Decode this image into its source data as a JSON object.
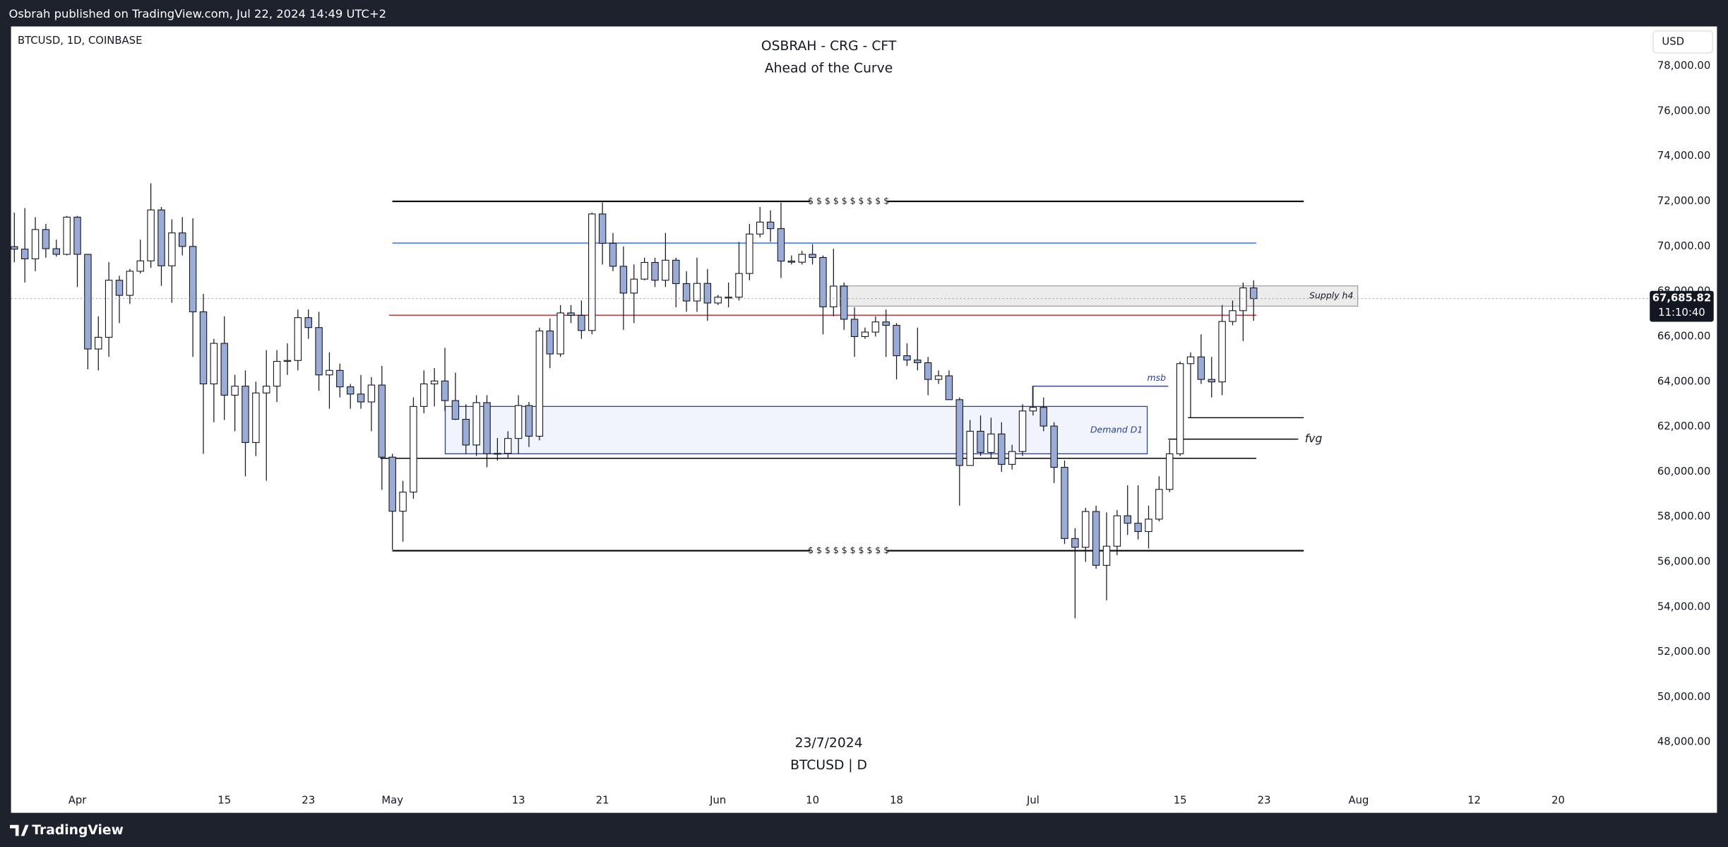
{
  "header": {
    "publisher": "Osbrah published on TradingView.com, Jul 22, 2024 14:49 UTC+2"
  },
  "footer": {
    "brand": "TradingView"
  },
  "chart_data": {
    "type": "candlestick",
    "title": "OSBRAH - CRG - CFT",
    "subtitle": "Ahead of the Curve",
    "symbol": "BTCUSD, 1D, COINBASE",
    "currency": "USD",
    "watermark_date": "23/7/2024",
    "watermark_symbol": "BTCUSD | D",
    "up_color": "#ffffff",
    "down_color": "#9aabd6",
    "wick_color": "#131722",
    "grid": false,
    "ylim": [
      44870,
      79760
    ],
    "yticks": [
      {
        "value": 48000,
        "label": "48,000.00"
      },
      {
        "value": 50000,
        "label": "50,000.00"
      },
      {
        "value": 52000,
        "label": "52,000.00"
      },
      {
        "value": 54000,
        "label": "54,000.00"
      },
      {
        "value": 56000,
        "label": "56,000.00"
      },
      {
        "value": 58000,
        "label": "58,000.00"
      },
      {
        "value": 60000,
        "label": "60,000.00"
      },
      {
        "value": 62000,
        "label": "62,000.00"
      },
      {
        "value": 64000,
        "label": "64,000.00"
      },
      {
        "value": 66000,
        "label": "66,000.00"
      },
      {
        "value": 68000,
        "label": "68,000.00"
      },
      {
        "value": 70000,
        "label": "70,000.00"
      },
      {
        "value": 72000,
        "label": "72,000.00"
      },
      {
        "value": 74000,
        "label": "74,000.00"
      },
      {
        "value": 76000,
        "label": "76,000.00"
      },
      {
        "value": 78000,
        "label": "78,000.00"
      }
    ],
    "last_price": {
      "value": 67685.82,
      "label": "67,685.82"
    },
    "countdown": "11:10:40",
    "categories": [
      null,
      null,
      null,
      null,
      null,
      null,
      "Apr",
      null,
      null,
      null,
      null,
      null,
      null,
      null,
      null,
      null,
      null,
      null,
      null,
      null,
      "15",
      null,
      null,
      null,
      null,
      null,
      null,
      null,
      "23",
      null,
      null,
      null,
      null,
      null,
      null,
      null,
      "May",
      null,
      null,
      null,
      null,
      null,
      null,
      null,
      null,
      null,
      null,
      null,
      "13",
      null,
      null,
      null,
      null,
      null,
      null,
      null,
      "21",
      null,
      null,
      null,
      null,
      null,
      null,
      null,
      null,
      null,
      null,
      "Jun",
      null,
      null,
      null,
      null,
      null,
      null,
      null,
      null,
      "10",
      null,
      null,
      null,
      null,
      null,
      null,
      null,
      "18",
      null,
      null,
      null,
      null,
      null,
      null,
      null,
      null,
      null,
      null,
      null,
      null,
      "Jul",
      null,
      null,
      null,
      null,
      null,
      null,
      null,
      null,
      null,
      null,
      null,
      null,
      null,
      "15",
      null,
      null,
      null,
      null,
      null,
      null,
      null,
      "23",
      null,
      null,
      null,
      null,
      null,
      null,
      null,
      null,
      "Aug",
      null,
      null,
      null,
      null,
      null,
      null,
      null,
      null,
      null,
      null,
      "12",
      null,
      null,
      null,
      null,
      null,
      null,
      null,
      "20"
    ],
    "values": [
      [
        69990,
        71500,
        69300,
        69880
      ],
      [
        69880,
        71700,
        68400,
        69450
      ],
      [
        69450,
        71300,
        68900,
        70750
      ],
      [
        70750,
        71000,
        69500,
        69900
      ],
      [
        69900,
        70300,
        69550,
        69650
      ],
      [
        69650,
        71350,
        69600,
        71300
      ],
      [
        71300,
        71350,
        68200,
        69650
      ],
      [
        69650,
        69650,
        64550,
        65450
      ],
      [
        65450,
        66900,
        64500,
        65970
      ],
      [
        65970,
        69300,
        65100,
        68500
      ],
      [
        68500,
        68700,
        66600,
        67830
      ],
      [
        67830,
        69000,
        67450,
        68900
      ],
      [
        68900,
        70300,
        68800,
        69360
      ],
      [
        69360,
        72800,
        69050,
        71620
      ],
      [
        71620,
        71750,
        68250,
        69140
      ],
      [
        69140,
        71200,
        67500,
        70600
      ],
      [
        70600,
        71300,
        69600,
        70000
      ],
      [
        70000,
        71250,
        65100,
        67100
      ],
      [
        67100,
        67900,
        60800,
        63900
      ],
      [
        63900,
        65900,
        62200,
        65700
      ],
      [
        65700,
        66900,
        62300,
        63400
      ],
      [
        63400,
        64300,
        61800,
        63800
      ],
      [
        63800,
        64500,
        59800,
        61300
      ],
      [
        61300,
        64000,
        60700,
        63500
      ],
      [
        63500,
        65400,
        59600,
        63800
      ],
      [
        63800,
        65400,
        63100,
        64900
      ],
      [
        64900,
        65700,
        64300,
        64940
      ],
      [
        64940,
        67200,
        64500,
        66840
      ],
      [
        66840,
        67200,
        65900,
        66400
      ],
      [
        66400,
        67100,
        63600,
        64300
      ],
      [
        64300,
        65300,
        62800,
        64500
      ],
      [
        64500,
        64800,
        63300,
        63770
      ],
      [
        63770,
        63900,
        62800,
        63450
      ],
      [
        63450,
        64300,
        62800,
        63100
      ],
      [
        63100,
        64200,
        61800,
        63850
      ],
      [
        63850,
        64700,
        59200,
        60650
      ],
      [
        60650,
        60800,
        56550,
        58250
      ],
      [
        58250,
        59600,
        56900,
        59100
      ],
      [
        59100,
        63300,
        58800,
        62900
      ],
      [
        62900,
        64500,
        62600,
        63900
      ],
      [
        63900,
        64600,
        62900,
        64030
      ],
      [
        64030,
        65500,
        62700,
        63160
      ],
      [
        63160,
        64400,
        62300,
        62330
      ],
      [
        62330,
        63000,
        60800,
        61190
      ],
      [
        61190,
        63400,
        60700,
        63070
      ],
      [
        63070,
        63400,
        60200,
        60800
      ],
      [
        60800,
        61500,
        60500,
        60820
      ],
      [
        60820,
        61800,
        60600,
        61480
      ],
      [
        61480,
        63400,
        60800,
        62940
      ],
      [
        62940,
        63100,
        61100,
        61580
      ],
      [
        61580,
        66400,
        61400,
        66250
      ],
      [
        66250,
        66800,
        64600,
        65230
      ],
      [
        65230,
        67400,
        65100,
        67050
      ],
      [
        67050,
        67400,
        66600,
        66940
      ],
      [
        66940,
        67600,
        65900,
        66270
      ],
      [
        66270,
        71500,
        66100,
        71440
      ],
      [
        71440,
        71950,
        69200,
        70140
      ],
      [
        70140,
        70600,
        68900,
        69120
      ],
      [
        69120,
        70000,
        66300,
        67930
      ],
      [
        67930,
        69200,
        66600,
        68550
      ],
      [
        68550,
        69500,
        68500,
        69290
      ],
      [
        69290,
        69500,
        68200,
        68500
      ],
      [
        68500,
        70600,
        68200,
        69390
      ],
      [
        69390,
        69500,
        67300,
        68350
      ],
      [
        68350,
        68900,
        67100,
        67580
      ],
      [
        67580,
        69500,
        67100,
        68360
      ],
      [
        68360,
        69000,
        66700,
        67490
      ],
      [
        67490,
        67850,
        67400,
        67750
      ],
      [
        67750,
        68400,
        67300,
        67750
      ],
      [
        67750,
        70200,
        67600,
        68800
      ],
      [
        68800,
        71000,
        68500,
        70550
      ],
      [
        70550,
        71750,
        70400,
        71080
      ],
      [
        71080,
        71600,
        70200,
        70790
      ],
      [
        70790,
        71950,
        68600,
        69350
      ],
      [
        69350,
        69600,
        69200,
        69300
      ],
      [
        69300,
        69800,
        69200,
        69650
      ],
      [
        69650,
        70100,
        69200,
        69510
      ],
      [
        69510,
        69600,
        66100,
        67320
      ],
      [
        67320,
        69900,
        66900,
        68240
      ],
      [
        68240,
        68400,
        66300,
        66770
      ],
      [
        66770,
        67300,
        65100,
        66000
      ],
      [
        66000,
        66400,
        65900,
        66200
      ],
      [
        66200,
        66900,
        66000,
        66650
      ],
      [
        66650,
        67200,
        65100,
        66500
      ],
      [
        66500,
        66600,
        64100,
        65150
      ],
      [
        65150,
        65700,
        64700,
        64960
      ],
      [
        64960,
        66400,
        64500,
        64840
      ],
      [
        64840,
        65100,
        63400,
        64100
      ],
      [
        64100,
        64500,
        63900,
        64260
      ],
      [
        64260,
        64500,
        63200,
        63200
      ],
      [
        63200,
        63300,
        58500,
        60280
      ],
      [
        60280,
        62300,
        60300,
        61800
      ],
      [
        61800,
        62500,
        60700,
        60860
      ],
      [
        60860,
        62400,
        60600,
        61680
      ],
      [
        61680,
        62200,
        60000,
        60330
      ],
      [
        60330,
        61200,
        60100,
        60900
      ],
      [
        60900,
        63000,
        60700,
        62700
      ],
      [
        62700,
        63800,
        62500,
        62860
      ],
      [
        62860,
        63300,
        61800,
        62030
      ],
      [
        62030,
        62200,
        59500,
        60200
      ],
      [
        60200,
        60500,
        56800,
        57040
      ],
      [
        57040,
        57500,
        53500,
        56650
      ],
      [
        56650,
        58400,
        56000,
        58240
      ],
      [
        58240,
        58500,
        55700,
        55850
      ],
      [
        55850,
        58200,
        54300,
        56700
      ],
      [
        56700,
        58300,
        56300,
        58050
      ],
      [
        58050,
        59400,
        57200,
        57720
      ],
      [
        57720,
        59400,
        57000,
        57350
      ],
      [
        57350,
        58500,
        56600,
        57900
      ],
      [
        57900,
        59800,
        57800,
        59220
      ],
      [
        59220,
        61400,
        59100,
        60800
      ],
      [
        60800,
        64900,
        60700,
        64800
      ],
      [
        64800,
        65300,
        62400,
        65100
      ],
      [
        65100,
        66100,
        63900,
        64100
      ],
      [
        64100,
        65100,
        63300,
        63990
      ],
      [
        63990,
        67400,
        63400,
        66670
      ],
      [
        66670,
        67600,
        66500,
        67150
      ],
      [
        67150,
        68400,
        65800,
        68160
      ],
      [
        68160,
        68500,
        66700,
        67685.82
      ],
      null,
      null,
      null,
      null,
      null,
      null,
      null,
      null,
      null,
      null,
      null,
      null,
      null,
      null,
      null,
      null,
      null,
      null,
      null,
      null,
      null,
      null,
      null,
      null,
      null,
      null,
      null,
      null,
      null
    ],
    "levels": [
      {
        "price": 72000,
        "color": "#000000",
        "label": "$ $ $ $ $ $ $ $ $ $"
      },
      {
        "price": 56500,
        "color": "#000000",
        "label": "$ $ $ $ $ $ $ $ $ $"
      },
      {
        "price": 70150,
        "color": "#2962ff"
      },
      {
        "price": 66950,
        "color": "#b22833"
      },
      {
        "price": 60600,
        "color": "#000000"
      },
      {
        "price": 62400,
        "color": "#000000"
      },
      {
        "price": 61450,
        "color": "#000000",
        "label": "fvg"
      },
      {
        "price": 63800,
        "color": "#2a3f8f",
        "label": "msb"
      }
    ],
    "zones": [
      {
        "top": 68250,
        "bottom": 67350,
        "label": "Supply h4",
        "color": "#9e9e9e"
      },
      {
        "top": 62900,
        "bottom": 60800,
        "label": "Demand D1",
        "color": "#2a3f8f"
      }
    ]
  }
}
